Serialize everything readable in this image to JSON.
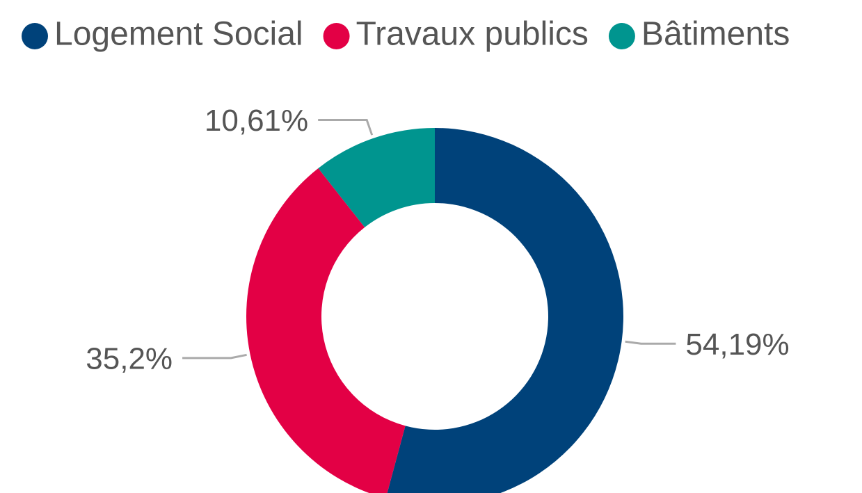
{
  "chart_data": {
    "type": "donut",
    "categories": [
      "Logement Social",
      "Travaux publics",
      "Bâtiments"
    ],
    "values": [
      54.19,
      35.2,
      10.61
    ],
    "value_labels": [
      "54,19%",
      "35,2%",
      "10,61%"
    ],
    "colors": [
      "#00427a",
      "#e30045",
      "#00958f"
    ],
    "legend": "top"
  }
}
